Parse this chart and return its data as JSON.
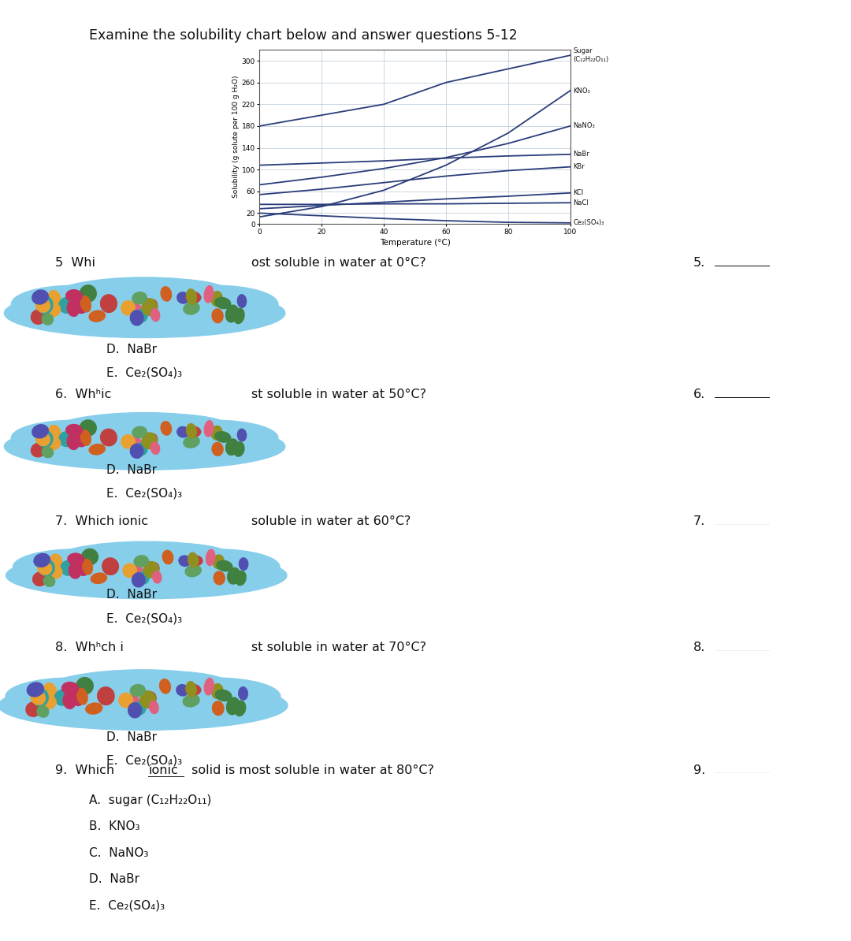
{
  "title": "Examine the solubility chart below and answer questions 5-12",
  "chart_ylabel": "Solubility (g solute per 100 g H₂O)",
  "chart_xlabel": "Temperature (°C)",
  "xlim": [
    0,
    100
  ],
  "ylim": [
    0,
    320
  ],
  "yticks": [
    0,
    20,
    60,
    100,
    140,
    180,
    220,
    260,
    300
  ],
  "xticks": [
    0,
    20,
    40,
    60,
    80,
    100
  ],
  "curves": {
    "Sugar\n(C₁₂H₂₂O₁₁)": [
      [
        0,
        180
      ],
      [
        20,
        200
      ],
      [
        40,
        220
      ],
      [
        60,
        260
      ],
      [
        80,
        285
      ],
      [
        100,
        310
      ]
    ],
    "KNO₃": [
      [
        0,
        13
      ],
      [
        20,
        32
      ],
      [
        40,
        62
      ],
      [
        60,
        108
      ],
      [
        80,
        167
      ],
      [
        100,
        245
      ]
    ],
    "NaNO₃": [
      [
        0,
        72
      ],
      [
        20,
        86
      ],
      [
        40,
        102
      ],
      [
        60,
        122
      ],
      [
        80,
        148
      ],
      [
        100,
        180
      ]
    ],
    "NaBr": [
      [
        0,
        108
      ],
      [
        20,
        112
      ],
      [
        40,
        116
      ],
      [
        60,
        121
      ],
      [
        80,
        125
      ],
      [
        100,
        128
      ]
    ],
    "KBr": [
      [
        0,
        54
      ],
      [
        20,
        64
      ],
      [
        40,
        76
      ],
      [
        60,
        88
      ],
      [
        80,
        98
      ],
      [
        100,
        105
      ]
    ],
    "KCl": [
      [
        0,
        28
      ],
      [
        20,
        34
      ],
      [
        40,
        40
      ],
      [
        60,
        46
      ],
      [
        80,
        51
      ],
      [
        100,
        57
      ]
    ],
    "NaCl": [
      [
        0,
        36
      ],
      [
        20,
        36
      ],
      [
        40,
        37
      ],
      [
        60,
        37
      ],
      [
        80,
        38
      ],
      [
        100,
        39
      ]
    ],
    "Ce₂(SO₄)₃": [
      [
        0,
        20
      ],
      [
        20,
        15
      ],
      [
        40,
        10
      ],
      [
        60,
        6
      ],
      [
        80,
        3
      ],
      [
        100,
        2
      ]
    ]
  },
  "cloud_color": "#87ceeb",
  "cloud_dot_colors": [
    "#e8a030",
    "#c04040",
    "#5050b0",
    "#408040",
    "#d06020",
    "#30a0a0",
    "#c03060",
    "#909020",
    "#e06080",
    "#60a060"
  ],
  "bg_color": "#ffffff",
  "line_color": "#2a3d7a",
  "q5_text1": "5  Whi",
  "q5_text2": "ost soluble in water at 0°C?",
  "q6_text1": "6.  Wh",
  "q6_text2": "ic",
  "q6_text3": "st soluble in water at 50°C?",
  "q7_text1": "7.  Which ionic",
  "q7_text2": "soluble in water at 60°C?",
  "q8_text1": "8.  Wh",
  "q8_text2": "ich i",
  "q8_text3": "st soluble in water at 70°C?",
  "q9_text": "9.  Which ionic solid is most soluble in water at 80°C?",
  "q9_choices": [
    "A.  sugar (C₁₂H₂₂O₁₁)",
    "B.  KNO₃",
    "C.  NaNO₃",
    "D.  NaBr",
    "E.  Ce₂(SO₄)₃"
  ],
  "choices_de": [
    "D.  NaBr",
    "E.  Ce₂(SO₄)₃"
  ]
}
